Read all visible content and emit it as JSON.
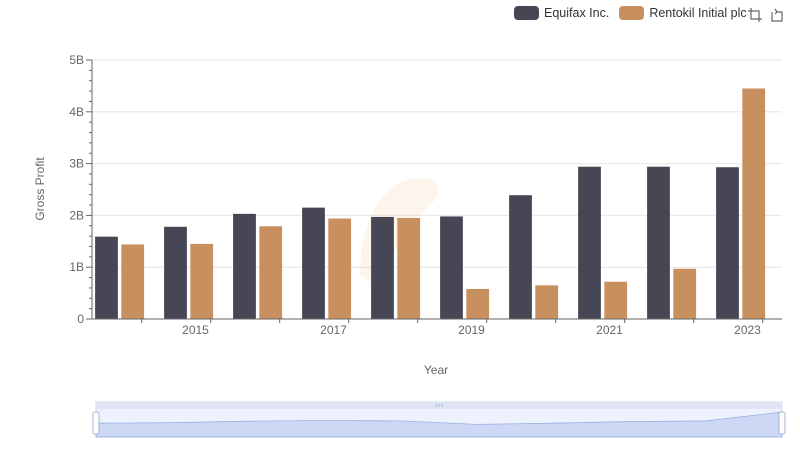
{
  "legend": {
    "items": [
      {
        "label": "Equifax Inc.",
        "color": "#464655"
      },
      {
        "label": "Rentokil Initial plc",
        "color": "#c8905e"
      }
    ]
  },
  "toolbox": {
    "icons": [
      "zoom-icon",
      "restore-icon"
    ]
  },
  "chart_data": {
    "type": "bar",
    "xlabel": "Year",
    "ylabel": "Gross Profit",
    "categories": [
      "2014",
      "2015",
      "2016",
      "2017",
      "2018",
      "2019",
      "2020",
      "2021",
      "2022",
      "2023"
    ],
    "x_tick_labels": [
      "2015",
      "2017",
      "2019",
      "2021",
      "2023"
    ],
    "y_tick_labels": [
      "0",
      "1B",
      "2B",
      "3B",
      "4B",
      "5B"
    ],
    "ylim": [
      0,
      5000000000
    ],
    "grid": true,
    "legend_position": "top-right",
    "series": [
      {
        "name": "Equifax Inc.",
        "color": "#464655",
        "values": [
          1590000000,
          1780000000,
          2030000000,
          2150000000,
          1970000000,
          1980000000,
          2390000000,
          2940000000,
          2940000000,
          2930000000
        ]
      },
      {
        "name": "Rentokil Initial plc",
        "color": "#c8905e",
        "values": [
          1440000000,
          1450000000,
          1790000000,
          1940000000,
          1950000000,
          580000000,
          650000000,
          720000000,
          970000000,
          4450000000
        ]
      }
    ]
  }
}
